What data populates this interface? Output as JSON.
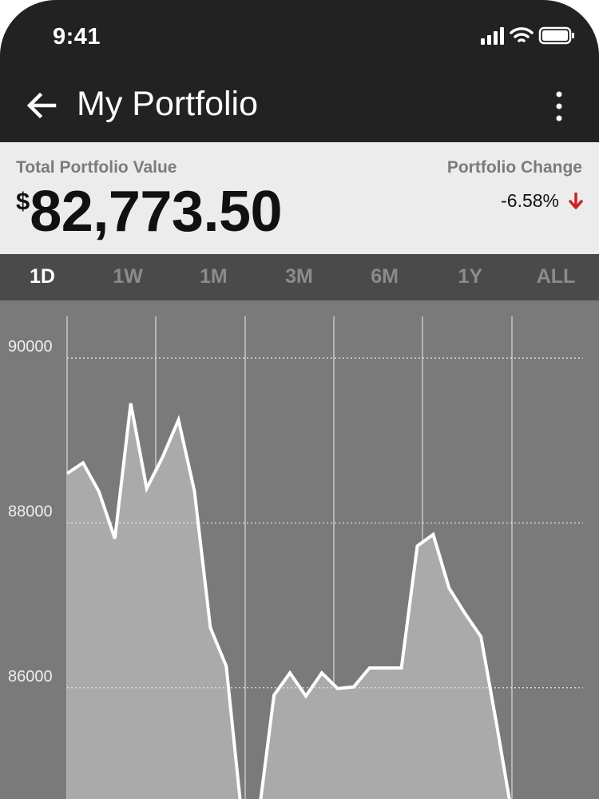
{
  "status_bar": {
    "time": "9:41"
  },
  "app_bar": {
    "title": "My Portfolio",
    "back_icon": "arrow-left-icon",
    "menu_icon": "more-vertical-icon"
  },
  "summary": {
    "total_label": "Total Portfolio Value",
    "currency_symbol": "$",
    "total_value": "82,773.50",
    "change_label": "Portfolio Change",
    "change_value": "-6.58%",
    "change_direction": "down",
    "change_color": "#cc2222"
  },
  "range_tabs": {
    "items": [
      "1D",
      "1W",
      "1M",
      "3M",
      "6M",
      "1Y",
      "ALL"
    ],
    "active": "1D"
  },
  "colors": {
    "header_bg": "#222222",
    "summary_bg": "#ececec",
    "tabs_bg": "#4a4a4a",
    "chart_bg": "#7a7a7a",
    "area_fill": "#aaaaaa",
    "line": "#ffffff"
  },
  "chart_data": {
    "type": "area",
    "y_ticks": [
      90000,
      88000,
      86000
    ],
    "ylim": [
      84650,
      90700
    ],
    "grid": true,
    "x": [
      0,
      1,
      2,
      3,
      4,
      5,
      6,
      7,
      8,
      9,
      10,
      11,
      12,
      13,
      14,
      15,
      16,
      17,
      18,
      19,
      20,
      21,
      22,
      23,
      24,
      25,
      26,
      27,
      28,
      29
    ],
    "values": [
      88600,
      88730,
      88380,
      87810,
      89450,
      88420,
      88800,
      89250,
      88390,
      86730,
      86260,
      84400,
      84400,
      85910,
      86180,
      85900,
      86180,
      85990,
      86010,
      86240,
      86240,
      86240,
      87720,
      87860,
      87210,
      86900,
      86620,
      85540,
      84400,
      84400
    ]
  }
}
